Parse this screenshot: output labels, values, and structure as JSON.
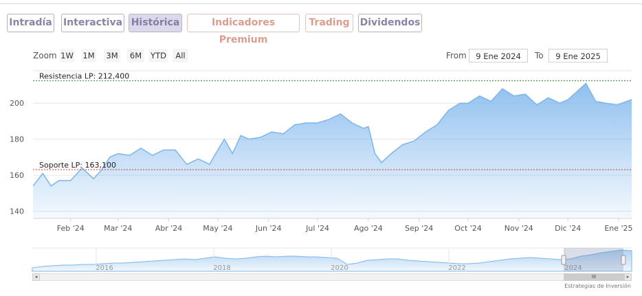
{
  "tabs": [
    {
      "label": "Intradía",
      "style": "purple"
    },
    {
      "label": "Interactiva",
      "style": "purple"
    },
    {
      "label": "Histórica",
      "style": "active"
    },
    {
      "label": "Indicadores Premium",
      "style": "salmon"
    },
    {
      "label": "Trading",
      "style": "salmon"
    },
    {
      "label": "Dividendos",
      "style": "purple"
    }
  ],
  "zoom": {
    "label": "Zoom",
    "buttons": [
      "1W",
      "1M",
      "3M",
      "6M",
      "YTD",
      "All"
    ]
  },
  "range": {
    "from_label": "From",
    "from_value": "9 Ene 2024",
    "to_label": "To",
    "to_value": "9 Ene 2025"
  },
  "navigator": {
    "years": [
      "2016",
      "2018",
      "2020",
      "2022",
      "2024"
    ],
    "thumb": "III"
  },
  "credit": "Estrategias de Inversión",
  "colors": {
    "line": "#7cb5ec",
    "resistance": "#3d8c3d",
    "support": "#c0392b"
  },
  "chart_data": {
    "type": "area",
    "y_ticks": [
      140,
      160,
      180,
      200
    ],
    "ylim": [
      136,
      218
    ],
    "x_ticks": [
      "Feb '24",
      "Mar '24",
      "Abr '24",
      "May '24",
      "Jun '24",
      "Jul '24",
      "Ago '24",
      "Sep '24",
      "Oct '24",
      "Nov '24",
      "Dic '24",
      "Ene '25"
    ],
    "x_tick_dates": [
      "2024-02-01",
      "2024-03-01",
      "2024-04-01",
      "2024-05-01",
      "2024-06-01",
      "2024-07-01",
      "2024-08-01",
      "2024-09-01",
      "2024-10-01",
      "2024-11-01",
      "2024-12-01",
      "2025-01-01"
    ],
    "x_range": [
      "2024-01-09",
      "2025-01-09"
    ],
    "annotations": [
      {
        "label": "Resistencia LP: 212,400",
        "value": 212.4,
        "kind": "resistance"
      },
      {
        "label": "Soporte LP: 163,100",
        "value": 163.1,
        "kind": "support"
      }
    ],
    "x": [
      "2024-01-09",
      "2024-01-15",
      "2024-01-20",
      "2024-01-25",
      "2024-02-01",
      "2024-02-08",
      "2024-02-15",
      "2024-02-20",
      "2024-02-25",
      "2024-03-01",
      "2024-03-08",
      "2024-03-15",
      "2024-03-22",
      "2024-03-29",
      "2024-04-05",
      "2024-04-12",
      "2024-04-19",
      "2024-04-26",
      "2024-05-01",
      "2024-05-05",
      "2024-05-10",
      "2024-05-15",
      "2024-05-20",
      "2024-05-27",
      "2024-06-03",
      "2024-06-10",
      "2024-06-17",
      "2024-06-24",
      "2024-07-01",
      "2024-07-08",
      "2024-07-15",
      "2024-07-22",
      "2024-07-29",
      "2024-08-01",
      "2024-08-05",
      "2024-08-09",
      "2024-08-15",
      "2024-08-22",
      "2024-08-29",
      "2024-09-05",
      "2024-09-12",
      "2024-09-19",
      "2024-09-26",
      "2024-10-01",
      "2024-10-08",
      "2024-10-15",
      "2024-10-22",
      "2024-10-29",
      "2024-11-05",
      "2024-11-12",
      "2024-11-19",
      "2024-11-26",
      "2024-12-01",
      "2024-12-06",
      "2024-12-12",
      "2024-12-18",
      "2024-12-24",
      "2024-12-31",
      "2025-01-09"
    ],
    "values": [
      154,
      161,
      154,
      157,
      157,
      164,
      158,
      163,
      170,
      172,
      171,
      175,
      171,
      174,
      174,
      166,
      169,
      166,
      174,
      180,
      172,
      182,
      180,
      181,
      184,
      183,
      188,
      189,
      189,
      191,
      194,
      189,
      186,
      187,
      172,
      167,
      172,
      177,
      179,
      184,
      188,
      196,
      200,
      200,
      204,
      201,
      208,
      204,
      205,
      199,
      203,
      200,
      202,
      206,
      211,
      201,
      200,
      199,
      202
    ]
  }
}
